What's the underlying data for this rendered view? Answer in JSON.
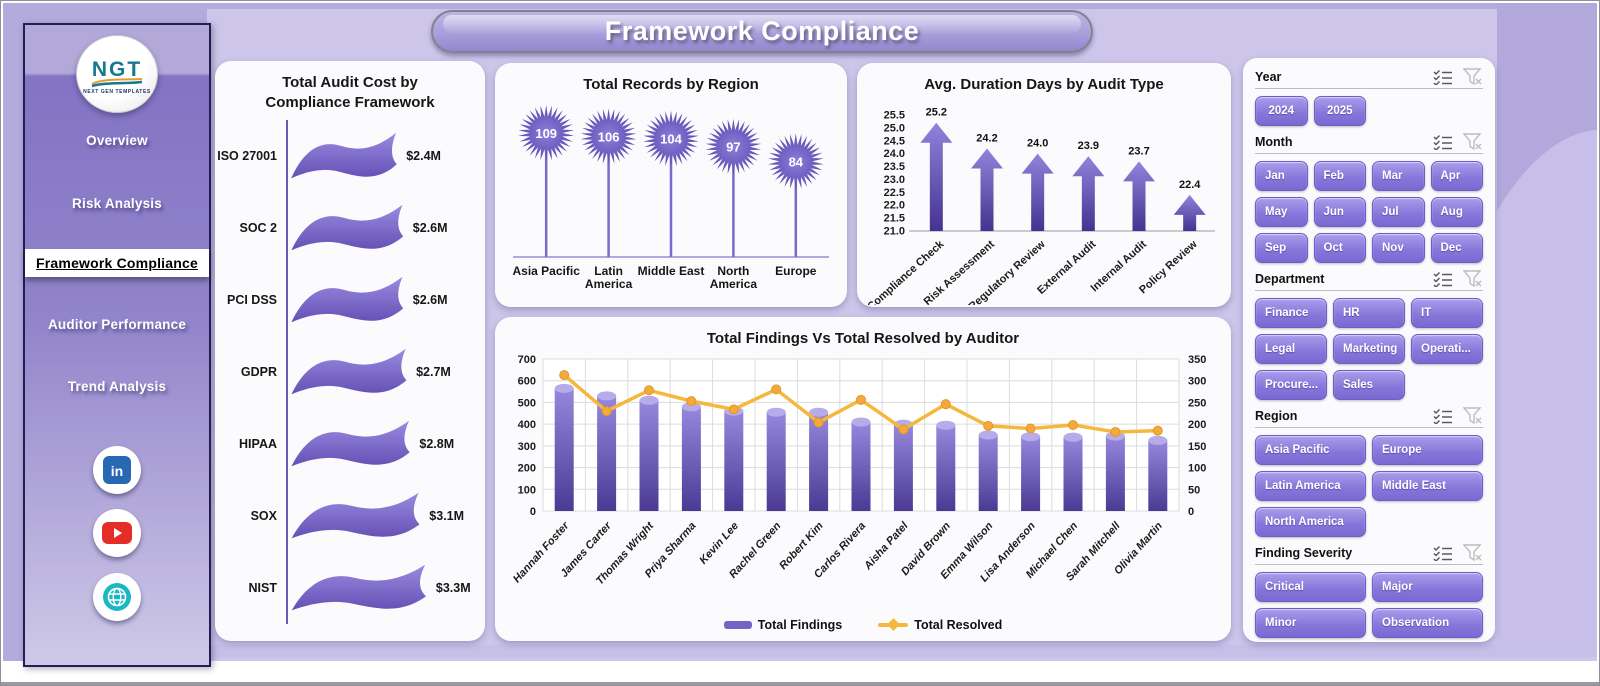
{
  "page_title": "Framework Compliance",
  "logo": {
    "text": "NGT",
    "subtext": "NEXT GEN TEMPLATES"
  },
  "sidebar": {
    "items": [
      {
        "label": "Overview",
        "active": false
      },
      {
        "label": "Risk Analysis",
        "active": false
      },
      {
        "label": "Framework Compliance",
        "active": true
      },
      {
        "label": "Auditor Performance",
        "active": false
      },
      {
        "label": "Trend Analysis",
        "active": false
      }
    ],
    "socials": [
      "linkedin",
      "youtube",
      "website"
    ]
  },
  "slicers": [
    {
      "title": "Year",
      "cols": 4,
      "center": true,
      "options": [
        "2024",
        "2025"
      ]
    },
    {
      "title": "Month",
      "cols": 4,
      "center": false,
      "options": [
        "Jan",
        "Feb",
        "Mar",
        "Apr",
        "May",
        "Jun",
        "Jul",
        "Aug",
        "Sep",
        "Oct",
        "Nov",
        "Dec"
      ]
    },
    {
      "title": "Department",
      "cols": 3,
      "center": false,
      "options": [
        "Finance",
        "HR",
        "IT",
        "Legal",
        "Marketing",
        "Operati...",
        "Procure...",
        "Sales"
      ]
    },
    {
      "title": "Region",
      "cols": 2,
      "center": false,
      "options": [
        "Asia Pacific",
        "Europe",
        "Latin America",
        "Middle East",
        "North America"
      ]
    },
    {
      "title": "Finding Severity",
      "cols": 2,
      "center": false,
      "options": [
        "Critical",
        "Major",
        "Minor",
        "Observation"
      ]
    }
  ],
  "chart_data": [
    {
      "id": "audit_cost",
      "type": "bar",
      "title": "Total Audit Cost by Compliance Framework",
      "categories": [
        "ISO 27001",
        "SOC 2",
        "PCI DSS",
        "GDPR",
        "HIPAA",
        "SOX",
        "NIST"
      ],
      "values": [
        2.4,
        2.6,
        2.6,
        2.7,
        2.8,
        3.1,
        3.3
      ],
      "labels": [
        "$2.4M",
        "$2.6M",
        "$2.6M",
        "$2.7M",
        "$2.8M",
        "$3.1M",
        "$3.3M"
      ],
      "unit": "$M",
      "orientation": "horizontal",
      "marker": "wavy-flag"
    },
    {
      "id": "records_region",
      "type": "bar",
      "title": "Total Records by Region",
      "categories": [
        "Asia Pacific",
        "Latin America",
        "Middle East",
        "North America",
        "Europe"
      ],
      "tick_lines": [
        [
          "Asia Pacific"
        ],
        [
          "Latin",
          "America"
        ],
        [
          "Middle East"
        ],
        [
          "North",
          "America"
        ],
        [
          "Europe"
        ]
      ],
      "values": [
        109,
        106,
        104,
        97,
        84
      ],
      "marker": "starburst-lollipop"
    },
    {
      "id": "duration",
      "type": "bar",
      "title": "Avg. Duration Days by Audit Type",
      "categories": [
        "Compliance Check",
        "Risk Assessment",
        "Regulatory Review",
        "External Audit",
        "Internal Audit",
        "Policy Review"
      ],
      "values": [
        25.2,
        24.2,
        24.0,
        23.9,
        23.7,
        22.4
      ],
      "ylim": [
        21.0,
        25.5
      ],
      "ystep": 0.5,
      "marker": "arrow"
    },
    {
      "id": "findings_vs_resolved",
      "type": "combo",
      "title": "Total Findings Vs Total Resolved by Auditor",
      "categories": [
        "Hannah Foster",
        "James Carter",
        "Thomas Wright",
        "Priya Sharma",
        "Kevin Lee",
        "Rachel Green",
        "Robert Kim",
        "Carlos Rivera",
        "Aisha Patel",
        "David Brown",
        "Emma Wilson",
        "Lisa Anderson",
        "Michael Chen",
        "Sarah Mitchell",
        "Olivia Martin"
      ],
      "series": [
        {
          "name": "Total Findings",
          "type": "bar",
          "axis": "left",
          "values": [
            565,
            530,
            510,
            480,
            460,
            455,
            455,
            410,
            400,
            395,
            350,
            342,
            340,
            345,
            325
          ]
        },
        {
          "name": "Total Resolved",
          "type": "line",
          "axis": "right",
          "values": [
            313,
            230,
            278,
            253,
            234,
            280,
            204,
            256,
            188,
            246,
            196,
            190,
            198,
            182,
            185
          ]
        }
      ],
      "left_axis": {
        "min": 0,
        "max": 700,
        "step": 100
      },
      "right_axis": {
        "min": 0,
        "max": 350,
        "step": 50
      },
      "grid": true,
      "legend_position": "bottom"
    }
  ],
  "colors": {
    "page_bg": "#b4aadd",
    "canvas_bg": "#cdc6ea",
    "card_bg": "#fbfafd",
    "accent_purple": "#7663c6",
    "bar_top": "#9688dd",
    "bar_bottom": "#4a3a94",
    "line_orange": "#f5b83e",
    "slicer_button": "#8675d9",
    "sidebar_border": "#221f55",
    "linkedin_blue": "#2867b2",
    "youtube_red": "#e52d27",
    "globe_teal": "#1fb6c4"
  }
}
